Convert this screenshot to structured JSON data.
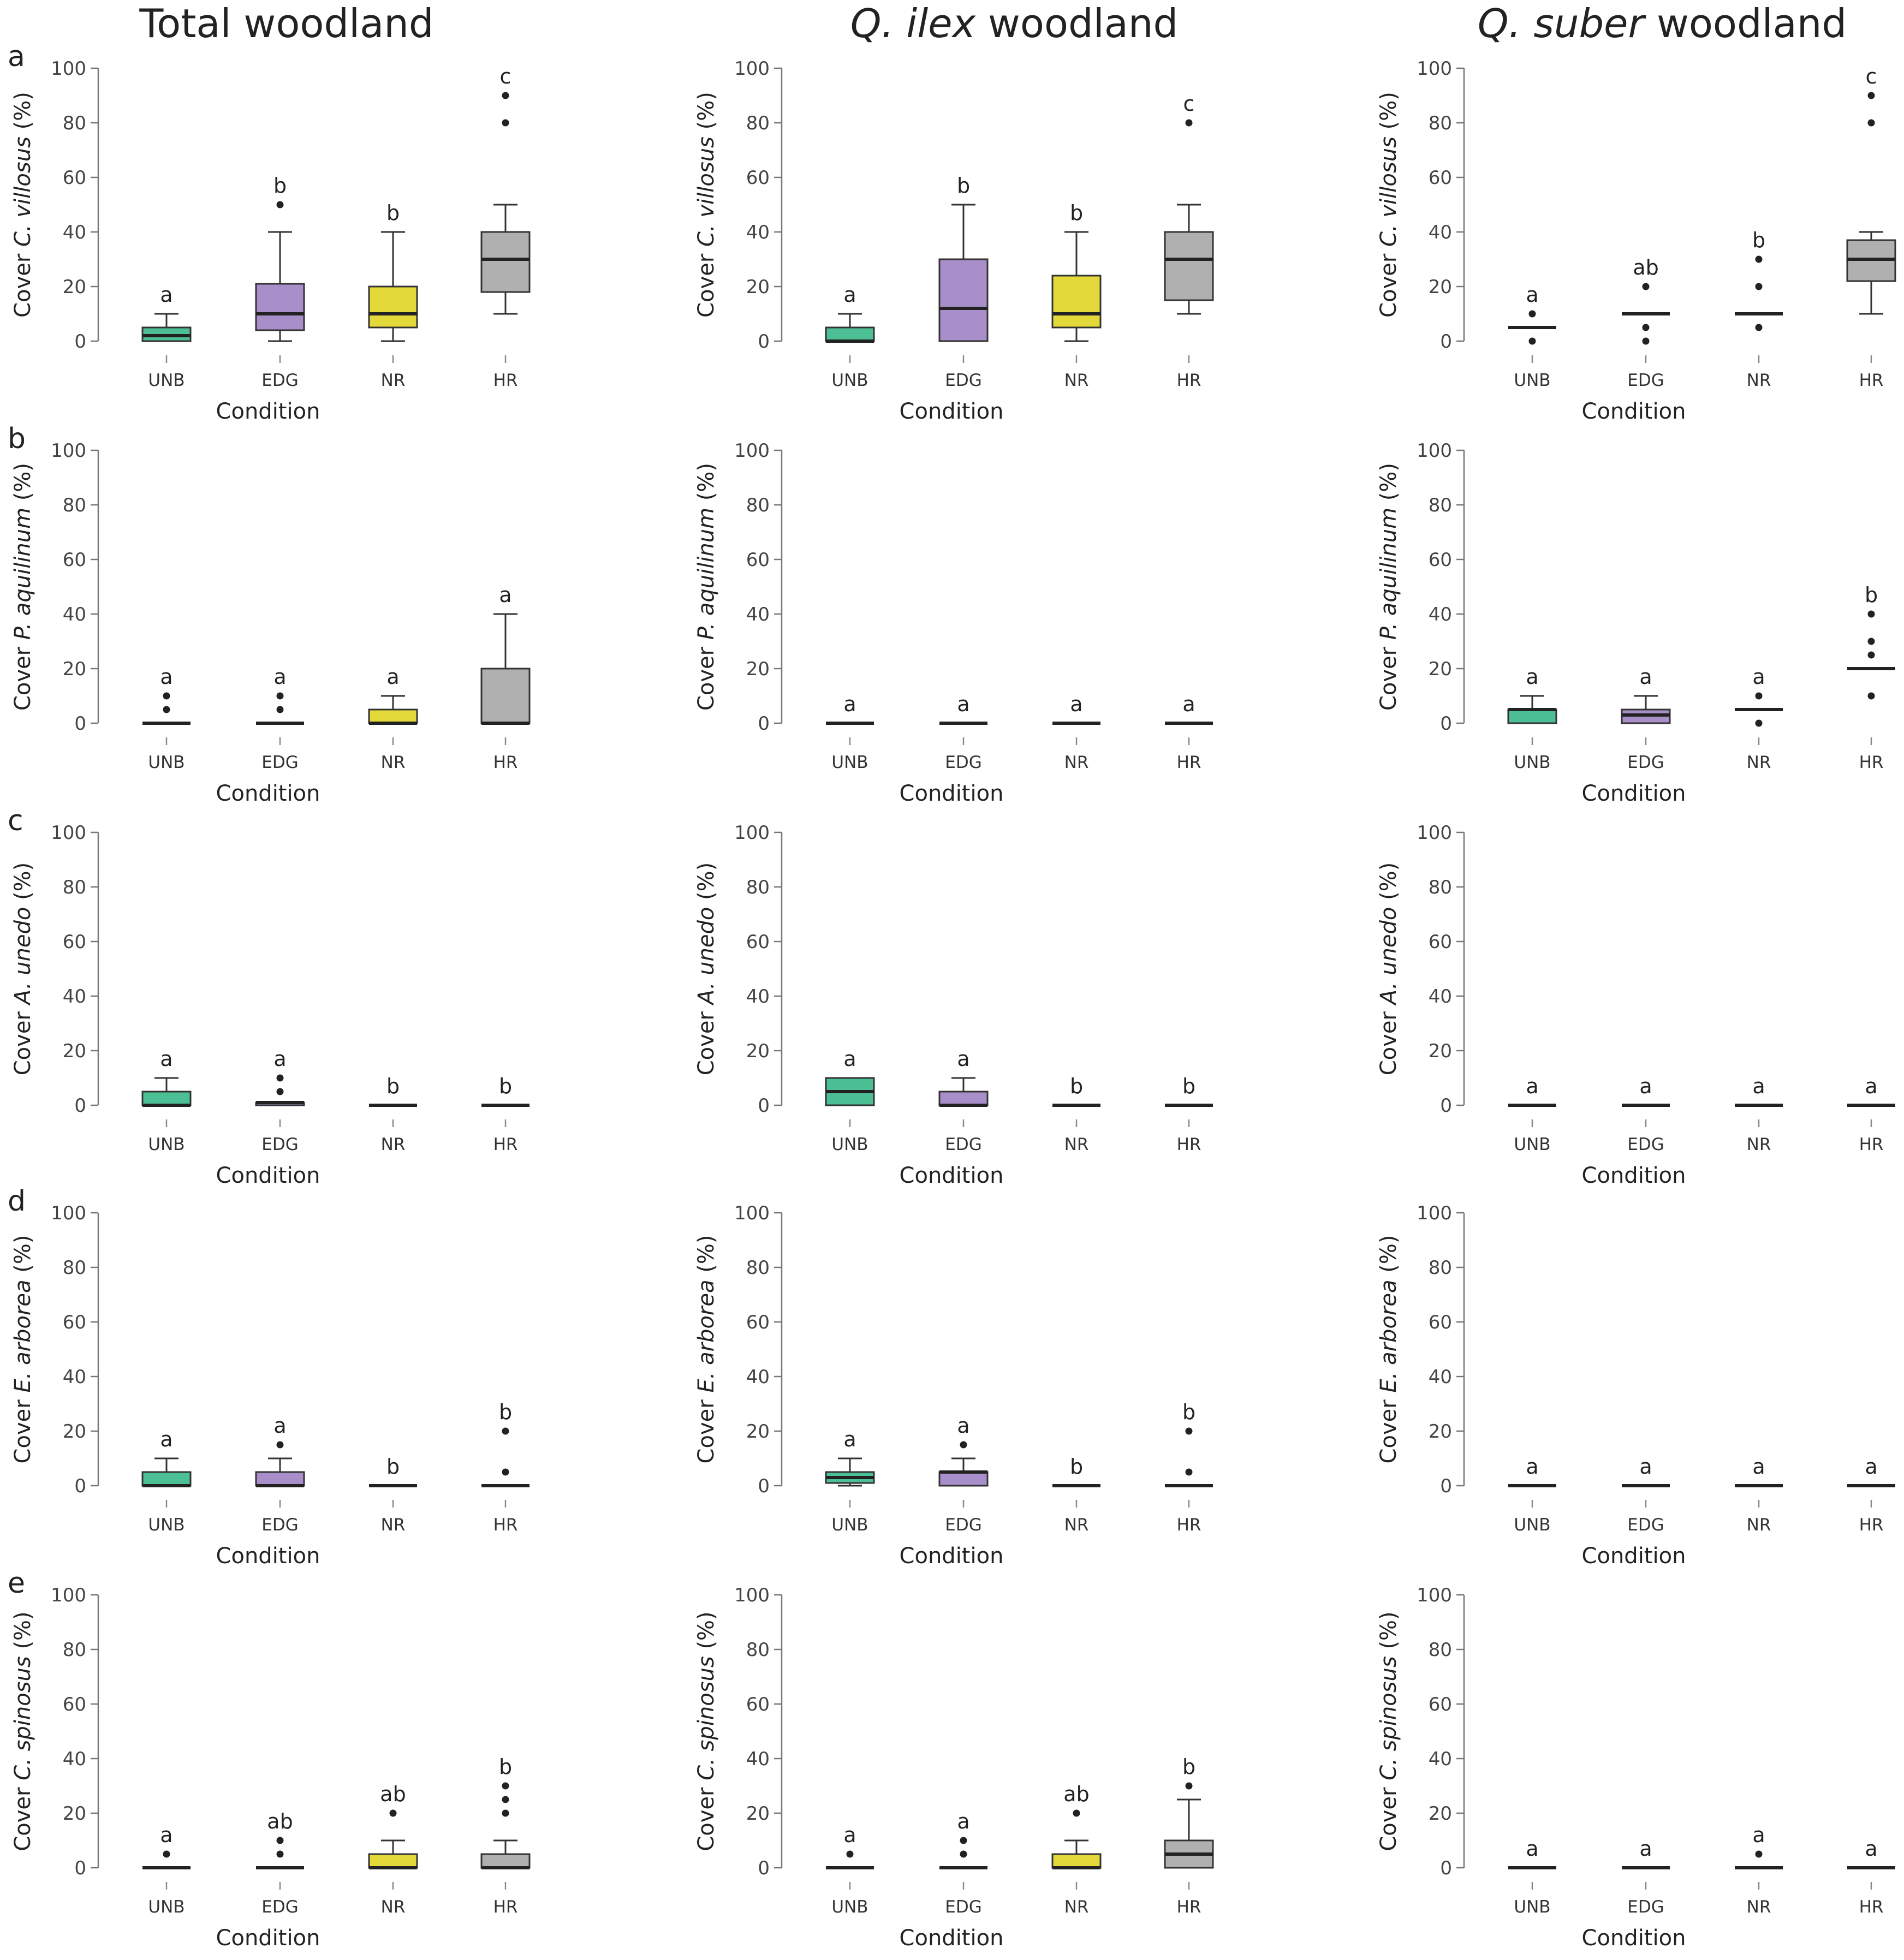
{
  "column_titles": [
    {
      "prefix": "",
      "italic": "",
      "suffix": "Total woodland"
    },
    {
      "prefix": "",
      "italic": "Q. ilex",
      "suffix": " woodland"
    },
    {
      "prefix": "",
      "italic": "Q. suber",
      "suffix": " woodland"
    }
  ],
  "row_letters": [
    "a",
    "b",
    "c",
    "d",
    "e"
  ],
  "row_species": [
    "C. villosus",
    "P. aquilinum",
    "A. unedo",
    "E. arborea",
    "C. spinosus"
  ],
  "ylabel_prefix": "Cover ",
  "ylabel_suffix": " (%)",
  "xlabel": "Condition",
  "y_ticks": [
    "0",
    "20",
    "40",
    "60",
    "80",
    "100"
  ],
  "categories": [
    "UNB",
    "EDG",
    "NR",
    "HR"
  ],
  "colors": {
    "UNB": "#4dbf94",
    "EDG": "#a98fca",
    "NR": "#e3d93a",
    "HR": "#b0b0b0"
  },
  "chart_data": [
    {
      "type": "box",
      "row": "a",
      "column": "Total woodland",
      "ylabel": "Cover C. villosus (%)",
      "xlabel": "Condition",
      "ylim": [
        0,
        100
      ],
      "categories": [
        "UNB",
        "EDG",
        "NR",
        "HR"
      ],
      "boxes": [
        {
          "category": "UNB",
          "min": 0,
          "q1": 0,
          "median": 2,
          "q3": 5,
          "max": 10,
          "outliers": [],
          "letter": "a"
        },
        {
          "category": "EDG",
          "min": 0,
          "q1": 4,
          "median": 10,
          "q3": 21,
          "max": 40,
          "outliers": [
            50
          ],
          "letter": "b"
        },
        {
          "category": "NR",
          "min": 0,
          "q1": 5,
          "median": 10,
          "q3": 20,
          "max": 40,
          "outliers": [],
          "letter": "b"
        },
        {
          "category": "HR",
          "min": 10,
          "q1": 18,
          "median": 30,
          "q3": 40,
          "max": 50,
          "outliers": [
            80,
            90
          ],
          "letter": "c"
        }
      ]
    },
    {
      "type": "box",
      "row": "a",
      "column": "Q. ilex woodland",
      "ylabel": "Cover C. villosus (%)",
      "xlabel": "Condition",
      "ylim": [
        0,
        100
      ],
      "categories": [
        "UNB",
        "EDG",
        "NR",
        "HR"
      ],
      "boxes": [
        {
          "category": "UNB",
          "min": 0,
          "q1": 0,
          "median": 0,
          "q3": 5,
          "max": 10,
          "outliers": [],
          "letter": "a"
        },
        {
          "category": "EDG",
          "min": 0,
          "q1": 0,
          "median": 12,
          "q3": 30,
          "max": 50,
          "outliers": [],
          "letter": "b"
        },
        {
          "category": "NR",
          "min": 0,
          "q1": 5,
          "median": 10,
          "q3": 24,
          "max": 40,
          "outliers": [],
          "letter": "b"
        },
        {
          "category": "HR",
          "min": 10,
          "q1": 15,
          "median": 30,
          "q3": 40,
          "max": 50,
          "outliers": [
            80
          ],
          "letter": "c"
        }
      ]
    },
    {
      "type": "box",
      "row": "a",
      "column": "Q. suber woodland",
      "ylabel": "Cover C. villosus (%)",
      "xlabel": "Condition",
      "ylim": [
        0,
        100
      ],
      "categories": [
        "UNB",
        "EDG",
        "NR",
        "HR"
      ],
      "boxes": [
        {
          "category": "UNB",
          "min": 5,
          "q1": 5,
          "median": 5,
          "q3": 5,
          "max": 5,
          "outliers": [
            0,
            10
          ],
          "letter": "a"
        },
        {
          "category": "EDG",
          "min": 10,
          "q1": 10,
          "median": 10,
          "q3": 10,
          "max": 10,
          "outliers": [
            0,
            5,
            20
          ],
          "letter": "ab"
        },
        {
          "category": "NR",
          "min": 10,
          "q1": 10,
          "median": 10,
          "q3": 10,
          "max": 10,
          "outliers": [
            5,
            20,
            30
          ],
          "letter": "b"
        },
        {
          "category": "HR",
          "min": 10,
          "q1": 22,
          "median": 30,
          "q3": 37,
          "max": 40,
          "outliers": [
            80,
            90
          ],
          "letter": "c"
        }
      ]
    },
    {
      "type": "box",
      "row": "b",
      "column": "Total woodland",
      "ylabel": "Cover P. aquilinum (%)",
      "xlabel": "Condition",
      "ylim": [
        0,
        100
      ],
      "categories": [
        "UNB",
        "EDG",
        "NR",
        "HR"
      ],
      "boxes": [
        {
          "category": "UNB",
          "min": 0,
          "q1": 0,
          "median": 0,
          "q3": 0,
          "max": 0,
          "outliers": [
            5,
            10
          ],
          "letter": "a"
        },
        {
          "category": "EDG",
          "min": 0,
          "q1": 0,
          "median": 0,
          "q3": 0,
          "max": 0,
          "outliers": [
            5,
            10
          ],
          "letter": "a"
        },
        {
          "category": "NR",
          "min": 0,
          "q1": 0,
          "median": 0,
          "q3": 5,
          "max": 10,
          "outliers": [],
          "letter": "a"
        },
        {
          "category": "HR",
          "min": 0,
          "q1": 0,
          "median": 0,
          "q3": 20,
          "max": 40,
          "outliers": [],
          "letter": "a"
        }
      ]
    },
    {
      "type": "box",
      "row": "b",
      "column": "Q. ilex woodland",
      "ylabel": "Cover P. aquilinum (%)",
      "xlabel": "Condition",
      "ylim": [
        0,
        100
      ],
      "categories": [
        "UNB",
        "EDG",
        "NR",
        "HR"
      ],
      "boxes": [
        {
          "category": "UNB",
          "min": 0,
          "q1": 0,
          "median": 0,
          "q3": 0,
          "max": 0,
          "outliers": [],
          "letter": "a"
        },
        {
          "category": "EDG",
          "min": 0,
          "q1": 0,
          "median": 0,
          "q3": 0,
          "max": 0,
          "outliers": [],
          "letter": "a"
        },
        {
          "category": "NR",
          "min": 0,
          "q1": 0,
          "median": 0,
          "q3": 0,
          "max": 0,
          "outliers": [],
          "letter": "a"
        },
        {
          "category": "HR",
          "min": 0,
          "q1": 0,
          "median": 0,
          "q3": 0,
          "max": 0,
          "outliers": [],
          "letter": "a"
        }
      ]
    },
    {
      "type": "box",
      "row": "b",
      "column": "Q. suber woodland",
      "ylabel": "Cover P. aquilinum (%)",
      "xlabel": "Condition",
      "ylim": [
        0,
        100
      ],
      "categories": [
        "UNB",
        "EDG",
        "NR",
        "HR"
      ],
      "boxes": [
        {
          "category": "UNB",
          "min": 0,
          "q1": 0,
          "median": 5,
          "q3": 5,
          "max": 10,
          "outliers": [],
          "letter": "a"
        },
        {
          "category": "EDG",
          "min": 0,
          "q1": 0,
          "median": 3,
          "q3": 5,
          "max": 10,
          "outliers": [],
          "letter": "a"
        },
        {
          "category": "NR",
          "min": 5,
          "q1": 5,
          "median": 5,
          "q3": 5,
          "max": 5,
          "outliers": [
            0,
            10
          ],
          "letter": "a"
        },
        {
          "category": "HR",
          "min": 20,
          "q1": 20,
          "median": 20,
          "q3": 20,
          "max": 20,
          "outliers": [
            10,
            25,
            30,
            40
          ],
          "letter": "b"
        }
      ]
    },
    {
      "type": "box",
      "row": "c",
      "column": "Total woodland",
      "ylabel": "Cover A. unedo (%)",
      "xlabel": "Condition",
      "ylim": [
        0,
        100
      ],
      "categories": [
        "UNB",
        "EDG",
        "NR",
        "HR"
      ],
      "boxes": [
        {
          "category": "UNB",
          "min": 0,
          "q1": 0,
          "median": 0,
          "q3": 5,
          "max": 10,
          "outliers": [],
          "letter": "a"
        },
        {
          "category": "EDG",
          "min": 0,
          "q1": 0,
          "median": 1,
          "q3": 1,
          "max": 1,
          "outliers": [
            5,
            10
          ],
          "letter": "a"
        },
        {
          "category": "NR",
          "min": 0,
          "q1": 0,
          "median": 0,
          "q3": 0,
          "max": 0,
          "outliers": [],
          "letter": "b"
        },
        {
          "category": "HR",
          "min": 0,
          "q1": 0,
          "median": 0,
          "q3": 0,
          "max": 0,
          "outliers": [],
          "letter": "b"
        }
      ]
    },
    {
      "type": "box",
      "row": "c",
      "column": "Q. ilex woodland",
      "ylabel": "Cover A. unedo (%)",
      "xlabel": "Condition",
      "ylim": [
        0,
        100
      ],
      "categories": [
        "UNB",
        "EDG",
        "NR",
        "HR"
      ],
      "boxes": [
        {
          "category": "UNB",
          "min": 0,
          "q1": 0,
          "median": 5,
          "q3": 10,
          "max": 10,
          "outliers": [],
          "letter": "a"
        },
        {
          "category": "EDG",
          "min": 0,
          "q1": 0,
          "median": 0,
          "q3": 5,
          "max": 10,
          "outliers": [],
          "letter": "a"
        },
        {
          "category": "NR",
          "min": 0,
          "q1": 0,
          "median": 0,
          "q3": 0,
          "max": 0,
          "outliers": [],
          "letter": "b"
        },
        {
          "category": "HR",
          "min": 0,
          "q1": 0,
          "median": 0,
          "q3": 0,
          "max": 0,
          "outliers": [],
          "letter": "b"
        }
      ]
    },
    {
      "type": "box",
      "row": "c",
      "column": "Q. suber woodland",
      "ylabel": "Cover A. unedo (%)",
      "xlabel": "Condition",
      "ylim": [
        0,
        100
      ],
      "categories": [
        "UNB",
        "EDG",
        "NR",
        "HR"
      ],
      "boxes": [
        {
          "category": "UNB",
          "min": 0,
          "q1": 0,
          "median": 0,
          "q3": 0,
          "max": 0,
          "outliers": [],
          "letter": "a"
        },
        {
          "category": "EDG",
          "min": 0,
          "q1": 0,
          "median": 0,
          "q3": 0,
          "max": 0,
          "outliers": [],
          "letter": "a"
        },
        {
          "category": "NR",
          "min": 0,
          "q1": 0,
          "median": 0,
          "q3": 0,
          "max": 0,
          "outliers": [],
          "letter": "a"
        },
        {
          "category": "HR",
          "min": 0,
          "q1": 0,
          "median": 0,
          "q3": 0,
          "max": 0,
          "outliers": [],
          "letter": "a"
        }
      ]
    },
    {
      "type": "box",
      "row": "d",
      "column": "Total woodland",
      "ylabel": "Cover E. arborea (%)",
      "xlabel": "Condition",
      "ylim": [
        0,
        100
      ],
      "categories": [
        "UNB",
        "EDG",
        "NR",
        "HR"
      ],
      "boxes": [
        {
          "category": "UNB",
          "min": 0,
          "q1": 0,
          "median": 0,
          "q3": 5,
          "max": 10,
          "outliers": [],
          "letter": "a"
        },
        {
          "category": "EDG",
          "min": 0,
          "q1": 0,
          "median": 0,
          "q3": 5,
          "max": 10,
          "outliers": [
            15
          ],
          "letter": "a"
        },
        {
          "category": "NR",
          "min": 0,
          "q1": 0,
          "median": 0,
          "q3": 0,
          "max": 0,
          "outliers": [],
          "letter": "b"
        },
        {
          "category": "HR",
          "min": 0,
          "q1": 0,
          "median": 0,
          "q3": 0,
          "max": 0,
          "outliers": [
            5,
            20
          ],
          "letter": "b"
        }
      ]
    },
    {
      "type": "box",
      "row": "d",
      "column": "Q. ilex woodland",
      "ylabel": "Cover E. arborea (%)",
      "xlabel": "Condition",
      "ylim": [
        0,
        100
      ],
      "categories": [
        "UNB",
        "EDG",
        "NR",
        "HR"
      ],
      "boxes": [
        {
          "category": "UNB",
          "min": 0,
          "q1": 1,
          "median": 3,
          "q3": 5,
          "max": 10,
          "outliers": [],
          "letter": "a"
        },
        {
          "category": "EDG",
          "min": 0,
          "q1": 0,
          "median": 5,
          "q3": 5,
          "max": 10,
          "outliers": [
            15
          ],
          "letter": "a"
        },
        {
          "category": "NR",
          "min": 0,
          "q1": 0,
          "median": 0,
          "q3": 0,
          "max": 0,
          "outliers": [],
          "letter": "b"
        },
        {
          "category": "HR",
          "min": 0,
          "q1": 0,
          "median": 0,
          "q3": 0,
          "max": 0,
          "outliers": [
            5,
            20
          ],
          "letter": "b"
        }
      ]
    },
    {
      "type": "box",
      "row": "d",
      "column": "Q. suber woodland",
      "ylabel": "Cover E. arborea (%)",
      "xlabel": "Condition",
      "ylim": [
        0,
        100
      ],
      "categories": [
        "UNB",
        "EDG",
        "NR",
        "HR"
      ],
      "boxes": [
        {
          "category": "UNB",
          "min": 0,
          "q1": 0,
          "median": 0,
          "q3": 0,
          "max": 0,
          "outliers": [],
          "letter": "a"
        },
        {
          "category": "EDG",
          "min": 0,
          "q1": 0,
          "median": 0,
          "q3": 0,
          "max": 0,
          "outliers": [],
          "letter": "a"
        },
        {
          "category": "NR",
          "min": 0,
          "q1": 0,
          "median": 0,
          "q3": 0,
          "max": 0,
          "outliers": [],
          "letter": "a"
        },
        {
          "category": "HR",
          "min": 0,
          "q1": 0,
          "median": 0,
          "q3": 0,
          "max": 0,
          "outliers": [],
          "letter": "a"
        }
      ]
    },
    {
      "type": "box",
      "row": "e",
      "column": "Total woodland",
      "ylabel": "Cover C. spinosus (%)",
      "xlabel": "Condition",
      "ylim": [
        0,
        100
      ],
      "categories": [
        "UNB",
        "EDG",
        "NR",
        "HR"
      ],
      "boxes": [
        {
          "category": "UNB",
          "min": 0,
          "q1": 0,
          "median": 0,
          "q3": 0,
          "max": 0,
          "outliers": [
            5
          ],
          "letter": "a"
        },
        {
          "category": "EDG",
          "min": 0,
          "q1": 0,
          "median": 0,
          "q3": 0,
          "max": 0,
          "outliers": [
            5,
            10
          ],
          "letter": "ab"
        },
        {
          "category": "NR",
          "min": 0,
          "q1": 0,
          "median": 0,
          "q3": 5,
          "max": 10,
          "outliers": [
            20
          ],
          "letter": "ab"
        },
        {
          "category": "HR",
          "min": 0,
          "q1": 0,
          "median": 0,
          "q3": 5,
          "max": 10,
          "outliers": [
            20,
            25,
            30
          ],
          "letter": "b"
        }
      ]
    },
    {
      "type": "box",
      "row": "e",
      "column": "Q. ilex woodland",
      "ylabel": "Cover C. spinosus (%)",
      "xlabel": "Condition",
      "ylim": [
        0,
        100
      ],
      "categories": [
        "UNB",
        "EDG",
        "NR",
        "HR"
      ],
      "boxes": [
        {
          "category": "UNB",
          "min": 0,
          "q1": 0,
          "median": 0,
          "q3": 0,
          "max": 0,
          "outliers": [
            5
          ],
          "letter": "a"
        },
        {
          "category": "EDG",
          "min": 0,
          "q1": 0,
          "median": 0,
          "q3": 0,
          "max": 0,
          "outliers": [
            5,
            10
          ],
          "letter": "a"
        },
        {
          "category": "NR",
          "min": 0,
          "q1": 0,
          "median": 0,
          "q3": 5,
          "max": 10,
          "outliers": [
            20
          ],
          "letter": "ab"
        },
        {
          "category": "HR",
          "min": 0,
          "q1": 0,
          "median": 5,
          "q3": 10,
          "max": 25,
          "outliers": [
            30
          ],
          "letter": "b"
        }
      ]
    },
    {
      "type": "box",
      "row": "e",
      "column": "Q. suber woodland",
      "ylabel": "Cover C. spinosus (%)",
      "xlabel": "Condition",
      "ylim": [
        0,
        100
      ],
      "categories": [
        "UNB",
        "EDG",
        "NR",
        "HR"
      ],
      "boxes": [
        {
          "category": "UNB",
          "min": 0,
          "q1": 0,
          "median": 0,
          "q3": 0,
          "max": 0,
          "outliers": [],
          "letter": "a"
        },
        {
          "category": "EDG",
          "min": 0,
          "q1": 0,
          "median": 0,
          "q3": 0,
          "max": 0,
          "outliers": [],
          "letter": "a"
        },
        {
          "category": "NR",
          "min": 0,
          "q1": 0,
          "median": 0,
          "q3": 0,
          "max": 0,
          "outliers": [
            5
          ],
          "letter": "a"
        },
        {
          "category": "HR",
          "min": 0,
          "q1": 0,
          "median": 0,
          "q3": 0,
          "max": 0,
          "outliers": [],
          "letter": "a"
        }
      ]
    }
  ]
}
